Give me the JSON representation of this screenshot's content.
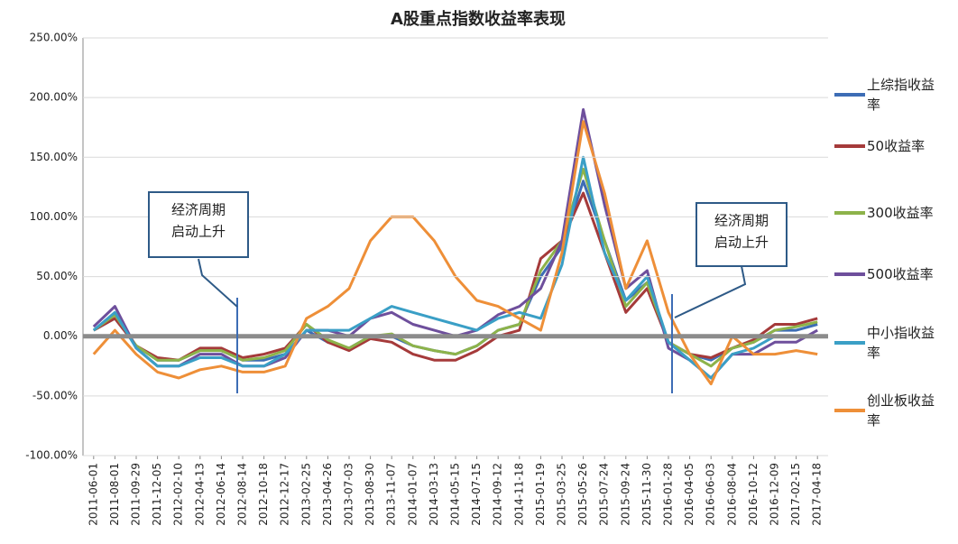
{
  "chart_data": {
    "type": "line",
    "title": "A股重点指数收益率表现",
    "categories": [
      "2011-06-01",
      "2011-08-01",
      "2011-09-29",
      "2011-12-05",
      "2012-02-10",
      "2012-04-13",
      "2012-06-14",
      "2012-08-14",
      "2012-10-18",
      "2012-12-17",
      "2013-02-25",
      "2013-04-26",
      "2013-07-03",
      "2013-08-30",
      "2013-11-07",
      "2014-01-07",
      "2014-03-13",
      "2014-05-15",
      "2014-07-15",
      "2014-09-12",
      "2014-11-18",
      "2015-01-19",
      "2015-03-25",
      "2015-05-26",
      "2015-07-24",
      "2015-09-24",
      "2015-11-30",
      "2016-01-28",
      "2016-04-05",
      "2016-06-03",
      "2016-08-04",
      "2016-10-12",
      "2016-12-09",
      "2017-02-15",
      "2017-04-18"
    ],
    "series": [
      {
        "name": "上综指收益率",
        "color": "#3d6db5",
        "values": [
          5,
          15,
          -8,
          -20,
          -20,
          -12,
          -12,
          -20,
          -20,
          -15,
          5,
          -5,
          -10,
          0,
          0,
          -8,
          -12,
          -15,
          -8,
          5,
          10,
          50,
          75,
          130,
          80,
          30,
          45,
          -5,
          -15,
          -20,
          -10,
          -5,
          5,
          5,
          10
        ]
      },
      {
        "name": "50收益率",
        "color": "#a53a3a",
        "values": [
          5,
          15,
          -8,
          -18,
          -20,
          -10,
          -10,
          -18,
          -15,
          -10,
          10,
          -5,
          -12,
          -2,
          -5,
          -15,
          -20,
          -20,
          -12,
          0,
          5,
          65,
          80,
          120,
          70,
          20,
          40,
          -5,
          -15,
          -18,
          -10,
          -3,
          10,
          10,
          15
        ]
      },
      {
        "name": "300收益率",
        "color": "#8db34a",
        "values": [
          5,
          18,
          -8,
          -20,
          -20,
          -12,
          -12,
          -20,
          -18,
          -12,
          10,
          -3,
          -10,
          0,
          2,
          -8,
          -12,
          -15,
          -8,
          5,
          10,
          55,
          80,
          140,
          80,
          25,
          45,
          -5,
          -15,
          -25,
          -10,
          -5,
          5,
          8,
          12
        ]
      },
      {
        "name": "500收益率",
        "color": "#6e4f9c",
        "values": [
          8,
          25,
          -10,
          -25,
          -25,
          -15,
          -15,
          -25,
          -25,
          -18,
          5,
          5,
          0,
          15,
          20,
          10,
          5,
          0,
          5,
          18,
          25,
          40,
          80,
          190,
          110,
          40,
          55,
          -10,
          -20,
          -35,
          -15,
          -15,
          -5,
          -5,
          5
        ]
      },
      {
        "name": "中小指收益率",
        "color": "#3a9fc6",
        "values": [
          5,
          20,
          -10,
          -25,
          -25,
          -18,
          -18,
          -25,
          -25,
          -15,
          5,
          5,
          5,
          15,
          25,
          20,
          15,
          10,
          5,
          15,
          20,
          15,
          60,
          150,
          70,
          30,
          50,
          -5,
          -20,
          -35,
          -15,
          -10,
          0,
          0,
          0
        ]
      },
      {
        "name": "创业板收益率",
        "color": "#ee8f38",
        "values": [
          -15,
          5,
          -15,
          -30,
          -35,
          -28,
          -25,
          -30,
          -30,
          -25,
          15,
          25,
          40,
          80,
          100,
          100,
          80,
          50,
          30,
          25,
          15,
          5,
          70,
          180,
          120,
          40,
          80,
          20,
          -15,
          -40,
          0,
          -15,
          -15,
          -12,
          -15
        ]
      }
    ],
    "ylim": [
      -100,
      250
    ],
    "yticks": [
      {
        "value": -100,
        "label": "-100.00%"
      },
      {
        "value": -50,
        "label": "-50.00%"
      },
      {
        "value": 0,
        "label": "0.00%"
      },
      {
        "value": 50,
        "label": "50.00%"
      },
      {
        "value": 100,
        "label": "100.00%"
      },
      {
        "value": 150,
        "label": "150.00%"
      },
      {
        "value": 200,
        "label": "200.00%"
      },
      {
        "value": 250,
        "label": "250.00%"
      }
    ],
    "grid": true,
    "legend": "right",
    "annotations": [
      {
        "lines": [
          "经济周期",
          "启动上升"
        ]
      },
      {
        "lines": [
          "经济周期",
          "启动上升"
        ]
      }
    ]
  }
}
